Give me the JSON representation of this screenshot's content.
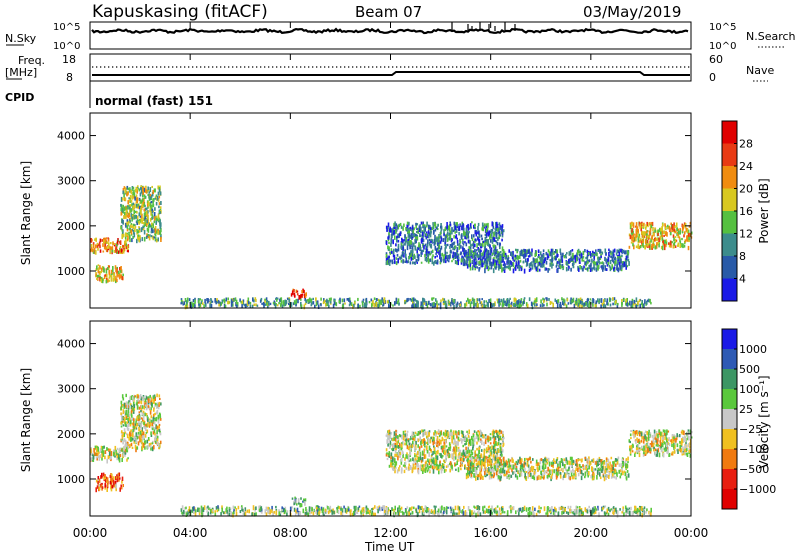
{
  "header": {
    "station": "Kapuskasing (fitACF)",
    "beam": "Beam 07",
    "date": "03/May/2019"
  },
  "noise_panel": {
    "left_label": "N.Sky",
    "right_label": "N.Search",
    "left_ticks": [
      "10^5",
      "10^0"
    ],
    "right_ticks": [
      "10^5",
      "10^0"
    ]
  },
  "freq_panel": {
    "left_label_1": "Freq.",
    "left_label_2": "[MHz]",
    "right_label": "Nave",
    "left_ticks": [
      "18",
      "8"
    ],
    "right_ticks": [
      "60",
      "0"
    ]
  },
  "cpid": {
    "label": "CPID",
    "value": "normal (fast) 151"
  },
  "chart_data": [
    {
      "type": "heatmap",
      "name_label": "Power",
      "ylabel": "Slant Range [km]",
      "colorbar_label": "Power [dB]",
      "ylim": [
        180,
        4500
      ],
      "xlim_hours": [
        0,
        24
      ],
      "y_ticks": [
        1000,
        2000,
        3000,
        4000
      ],
      "colorbar_ticks": [
        "4",
        "8",
        "12",
        "16",
        "20",
        "24",
        "28"
      ],
      "colorbar_range": [
        0,
        32
      ],
      "colors": [
        "#1a1ae6",
        "#285aa8",
        "#3c8c8c",
        "#55c040",
        "#d8c820",
        "#f08c10",
        "#e83a14",
        "#e00000"
      ],
      "regions": [
        {
          "label": "near-range band",
          "t": [
            3.6,
            22.4
          ],
          "r": [
            250,
            420
          ],
          "level": 0.35
        },
        {
          "label": "morning band",
          "t": [
            0.0,
            1.5
          ],
          "r": [
            1450,
            1750
          ],
          "level": 0.7
        },
        {
          "label": "morning arc",
          "t": [
            1.2,
            2.8
          ],
          "r": [
            1700,
            2900
          ],
          "level": 0.45
        },
        {
          "label": "low arc",
          "t": [
            0.2,
            1.3
          ],
          "r": [
            800,
            1150
          ],
          "level": 0.6
        },
        {
          "label": "post-midnight echo",
          "t": [
            8.0,
            8.6
          ],
          "r": [
            450,
            620
          ],
          "level": 0.85
        },
        {
          "label": "night streak",
          "t": [
            11.8,
            16.5
          ],
          "r": [
            1200,
            2100
          ],
          "level": 0.25
        },
        {
          "label": "evening band",
          "t": [
            15.0,
            21.5
          ],
          "r": [
            1050,
            1500
          ],
          "level": 0.25
        },
        {
          "label": "dusk band",
          "t": [
            21.5,
            24.0
          ],
          "r": [
            1550,
            2100
          ],
          "level": 0.6
        }
      ]
    },
    {
      "type": "heatmap",
      "name_label": "Velocity",
      "ylabel": "Slant Range [km]",
      "colorbar_label": "Velocity [m s⁻¹]",
      "ylim": [
        180,
        4500
      ],
      "xlim_hours": [
        0,
        24
      ],
      "y_ticks": [
        1000,
        2000,
        3000,
        4000
      ],
      "colorbar_ticks": [
        "1000",
        "500",
        "100",
        "25",
        "−25",
        "−100",
        "−500",
        "−1000"
      ],
      "colors": [
        "#1a1ae6",
        "#2e5ab4",
        "#3c9664",
        "#5ac83c",
        "#c8c8c8",
        "#f0c020",
        "#f07a10",
        "#e81e10",
        "#e00000"
      ],
      "regions": [
        {
          "label": "near-range band",
          "t": [
            3.6,
            22.4
          ],
          "r": [
            250,
            420
          ],
          "level": 0.42
        },
        {
          "label": "morning band",
          "t": [
            0.0,
            1.5
          ],
          "r": [
            1450,
            1750
          ],
          "level": 0.5
        },
        {
          "label": "morning arc",
          "t": [
            1.2,
            2.8
          ],
          "r": [
            1700,
            2900
          ],
          "level": 0.5
        },
        {
          "label": "low arc",
          "t": [
            0.2,
            1.3
          ],
          "r": [
            800,
            1150
          ],
          "level": 0.72
        },
        {
          "label": "post-midnight echo",
          "t": [
            8.0,
            8.6
          ],
          "r": [
            450,
            620
          ],
          "level": 0.3
        },
        {
          "label": "night streak",
          "t": [
            11.8,
            16.5
          ],
          "r": [
            1200,
            2100
          ],
          "level": 0.5
        },
        {
          "label": "evening band",
          "t": [
            15.0,
            21.5
          ],
          "r": [
            1050,
            1500
          ],
          "level": 0.5
        },
        {
          "label": "dusk band",
          "t": [
            21.5,
            24.0
          ],
          "r": [
            1550,
            2100
          ],
          "level": 0.52
        }
      ]
    }
  ],
  "xaxis": {
    "label": "Time UT",
    "ticks": [
      "00:00",
      "04:00",
      "08:00",
      "12:00",
      "16:00",
      "20:00",
      "00:00"
    ]
  }
}
